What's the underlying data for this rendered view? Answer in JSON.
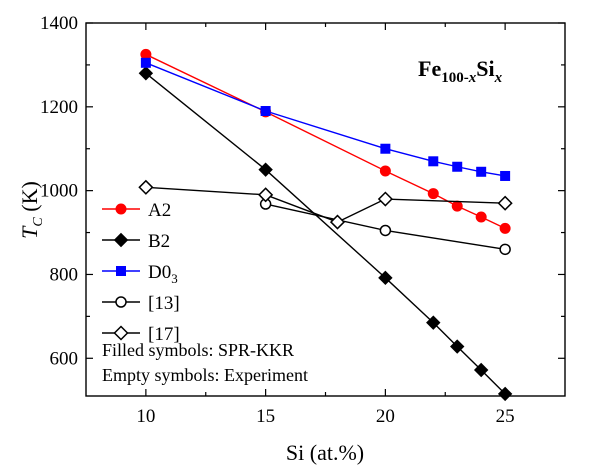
{
  "chart_data": {
    "type": "line",
    "title": "",
    "xlabel": "Si (at.%)",
    "ylabel_main": "T",
    "ylabel_sub": "C",
    "ylabel_unit": " (K)",
    "xlim": [
      7.5,
      27.5
    ],
    "ylim": [
      510,
      1400
    ],
    "xticks": [
      10,
      15,
      20,
      25
    ],
    "yticks": [
      600,
      800,
      1000,
      1200,
      1400
    ],
    "grid": false,
    "formula": {
      "base1": "Fe",
      "sub1": "100-",
      "subvar": "x",
      "base2": "Si",
      "sub2": "x"
    },
    "series": [
      {
        "name": "A2",
        "color": "#ff0000",
        "marker": "circle",
        "filled": true,
        "x": [
          10,
          15,
          20,
          22,
          23,
          24,
          25
        ],
        "y": [
          1325,
          1188,
          1047,
          993,
          963,
          937,
          910
        ]
      },
      {
        "name": "B2",
        "color": "#000000",
        "marker": "diamond",
        "filled": true,
        "x": [
          10,
          15,
          20,
          22,
          23,
          24,
          25
        ],
        "y": [
          1280,
          1050,
          792,
          685,
          628,
          572,
          515
        ]
      },
      {
        "name": "D0",
        "name_sub": "3",
        "color": "#0000ff",
        "marker": "square",
        "filled": true,
        "x": [
          10,
          15,
          20,
          22,
          23,
          24,
          25
        ],
        "y": [
          1305,
          1190,
          1100,
          1070,
          1057,
          1045,
          1035
        ]
      },
      {
        "name": "[13]",
        "color": "#000000",
        "marker": "circle",
        "filled": false,
        "x": [
          15,
          20,
          25
        ],
        "y": [
          968,
          905,
          860
        ]
      },
      {
        "name": "[17]",
        "color": "#000000",
        "marker": "diamond",
        "filled": false,
        "x": [
          10,
          15,
          18,
          20,
          25
        ],
        "y": [
          1008,
          990,
          925,
          980,
          970
        ]
      }
    ],
    "annotations": [
      "Filled symbols: SPR-KKR",
      "Empty symbols: Experiment"
    ],
    "legend_position": "left"
  }
}
